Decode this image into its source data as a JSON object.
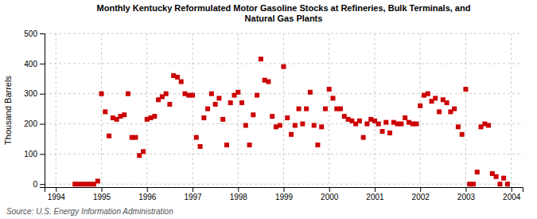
{
  "chart_data": {
    "type": "scatter",
    "title": "Monthly Kentucky Reformulated Motor Gasoline Stocks at Refineries, Bulk Terminals, and\nNatural Gas Plants",
    "y_label": "Thousand Barrels",
    "annotations": [
      "Source: U.S. Energy Information Administration"
    ],
    "color": "#cc0000",
    "marker": "square",
    "grid": true,
    "xlim": [
      1993.75,
      2004.25
    ],
    "xticks": [
      1994,
      1995,
      1996,
      1997,
      1998,
      1999,
      2000,
      2001,
      2002,
      2003,
      2004
    ],
    "ylim": [
      -10,
      500
    ],
    "yticks": [
      0,
      100,
      200,
      300,
      400,
      500
    ],
    "x": [
      1994.417,
      1994.5,
      1994.583,
      1994.667,
      1994.75,
      1994.833,
      1994.917,
      1995.0,
      1995.083,
      1995.167,
      1995.25,
      1995.333,
      1995.417,
      1995.5,
      1995.583,
      1995.667,
      1995.75,
      1995.833,
      1995.917,
      1996.0,
      1996.083,
      1996.167,
      1996.25,
      1996.333,
      1996.417,
      1996.5,
      1996.583,
      1996.667,
      1996.75,
      1996.833,
      1996.917,
      1997.0,
      1997.083,
      1997.167,
      1997.25,
      1997.333,
      1997.417,
      1997.5,
      1997.583,
      1997.667,
      1997.75,
      1997.833,
      1997.917,
      1998.0,
      1998.083,
      1998.167,
      1998.25,
      1998.333,
      1998.417,
      1998.5,
      1998.583,
      1998.667,
      1998.75,
      1998.833,
      1998.917,
      1999.0,
      1999.083,
      1999.167,
      1999.25,
      1999.333,
      1999.417,
      1999.5,
      1999.583,
      1999.667,
      1999.75,
      1999.833,
      1999.917,
      2000.0,
      2000.083,
      2000.167,
      2000.25,
      2000.333,
      2000.417,
      2000.5,
      2000.583,
      2000.667,
      2000.75,
      2000.833,
      2000.917,
      2001.0,
      2001.083,
      2001.167,
      2001.25,
      2001.333,
      2001.417,
      2001.5,
      2001.583,
      2001.667,
      2001.75,
      2001.833,
      2001.917,
      2002.0,
      2002.083,
      2002.167,
      2002.25,
      2002.333,
      2002.417,
      2002.5,
      2002.583,
      2002.667,
      2002.75,
      2002.833,
      2002.917,
      2003.0,
      2003.083,
      2003.167,
      2003.25,
      2003.333,
      2003.417,
      2003.5,
      2003.583,
      2003.667,
      2003.75,
      2003.833,
      2003.917
    ],
    "values": [
      0,
      0,
      0,
      0,
      0,
      0,
      10,
      300,
      240,
      160,
      220,
      215,
      225,
      230,
      300,
      155,
      155,
      95,
      108,
      215,
      220,
      225,
      280,
      290,
      300,
      265,
      360,
      355,
      340,
      300,
      295,
      295,
      155,
      125,
      220,
      250,
      300,
      265,
      285,
      215,
      130,
      270,
      295,
      305,
      270,
      195,
      130,
      230,
      295,
      415,
      345,
      340,
      225,
      190,
      195,
      390,
      220,
      165,
      195,
      250,
      200,
      250,
      305,
      195,
      130,
      190,
      250,
      315,
      285,
      250,
      250,
      225,
      215,
      210,
      200,
      210,
      155,
      200,
      215,
      210,
      200,
      175,
      205,
      170,
      205,
      200,
      200,
      220,
      205,
      200,
      200,
      260,
      295,
      300,
      275,
      285,
      240,
      280,
      270,
      240,
      250,
      190,
      165,
      315,
      0,
      0,
      40,
      190,
      200,
      195,
      35,
      25,
      0,
      20,
      0
    ]
  }
}
